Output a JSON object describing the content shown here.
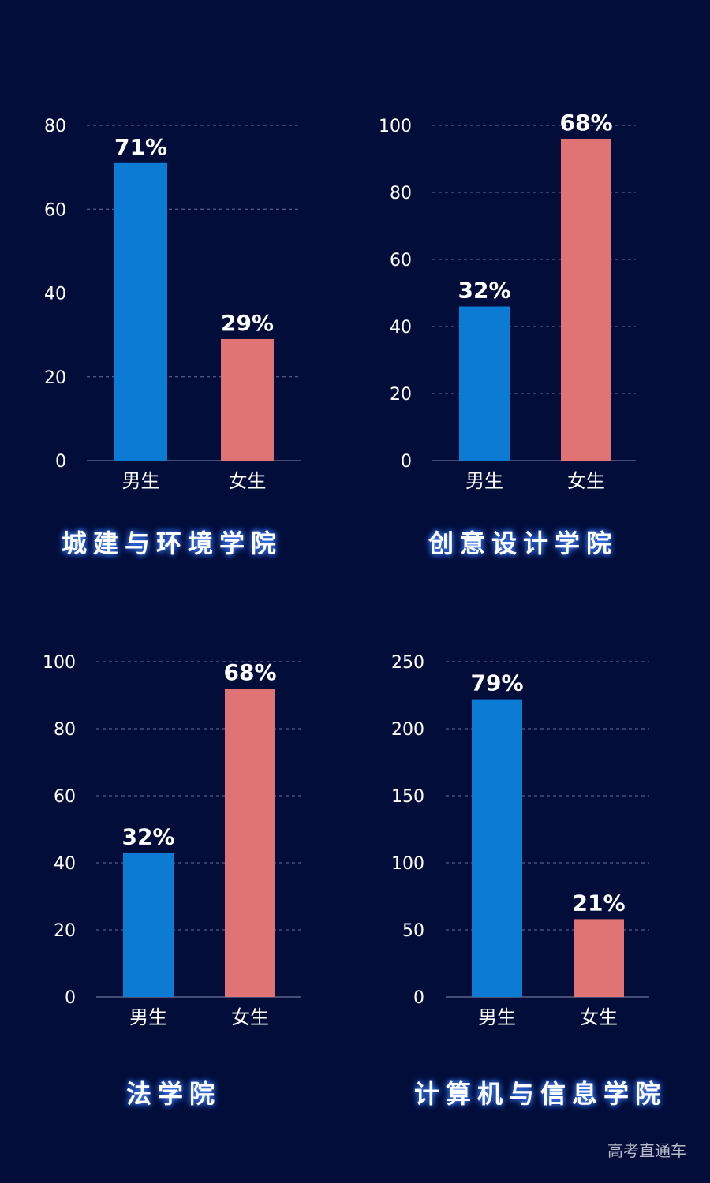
{
  "colors": {
    "background": "#020d3a",
    "male": "#0b7bd4",
    "female": "#e07373",
    "grid": "#8a93b8",
    "title_glow": "#3a7bff"
  },
  "watermark": "高考直通车",
  "chart_data": [
    {
      "type": "bar",
      "title": "城建与环境学院",
      "categories": [
        "男生",
        "女生"
      ],
      "values": [
        71,
        29
      ],
      "data_labels": [
        "71%",
        "29%"
      ],
      "y_ticks": [
        "0",
        "20",
        "40",
        "60",
        "80"
      ],
      "ylim": [
        0,
        80
      ],
      "grid": true
    },
    {
      "type": "bar",
      "title": "创意设计学院",
      "categories": [
        "男生",
        "女生"
      ],
      "values": [
        46,
        96
      ],
      "data_labels": [
        "32%",
        "68%"
      ],
      "y_ticks": [
        "0",
        "20",
        "40",
        "60",
        "80",
        "100"
      ],
      "ylim": [
        0,
        100
      ],
      "grid": true
    },
    {
      "type": "bar",
      "title": "法学院",
      "categories": [
        "男生",
        "女生"
      ],
      "values": [
        43,
        92
      ],
      "data_labels": [
        "32%",
        "68%"
      ],
      "y_ticks": [
        "0",
        "20",
        "40",
        "60",
        "80",
        "100"
      ],
      "ylim": [
        0,
        100
      ],
      "grid": true
    },
    {
      "type": "bar",
      "title": "计算机与信息学院",
      "categories": [
        "男生",
        "女生"
      ],
      "values": [
        222,
        58
      ],
      "data_labels": [
        "79%",
        "21%"
      ],
      "y_ticks": [
        "0",
        "50",
        "100",
        "150",
        "200",
        "250"
      ],
      "ylim": [
        0,
        250
      ],
      "grid": true
    }
  ]
}
